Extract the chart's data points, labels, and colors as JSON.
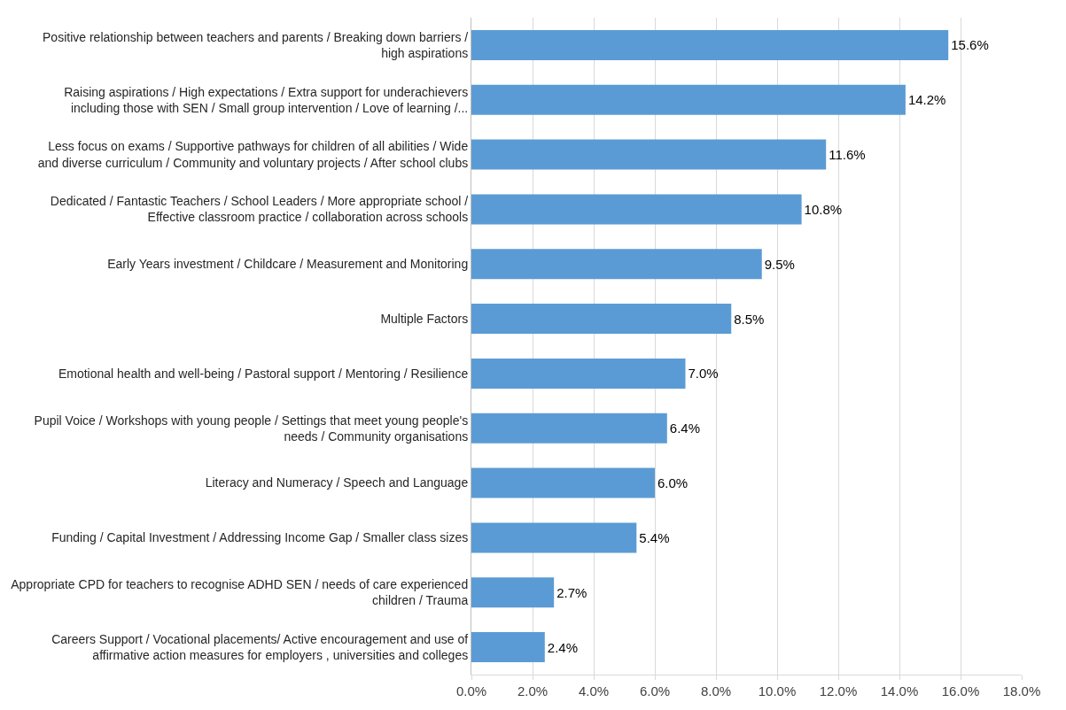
{
  "chart_data": {
    "type": "bar",
    "orientation": "horizontal",
    "categories": [
      "Positive relationship between teachers and parents / Breaking down barriers / high aspirations",
      "Raising aspirations / High expectations / Extra support for underachievers including those with SEN / Small group intervention / Love of learning /...",
      "Less focus on exams / Supportive pathways for children of all abilities / Wide and diverse curriculum / Community and voluntary projects / After school clubs",
      "Dedicated / Fantastic Teachers / School Leaders / More appropriate school / Effective classroom practice / collaboration across schools",
      "Early Years investment / Childcare / Measurement and Monitoring",
      "Multiple Factors",
      "Emotional health and well-being / Pastoral support / Mentoring / Resilience",
      "Pupil Voice / Workshops with young people / Settings that meet young people's needs / Community organisations",
      "Literacy and Numeracy / Speech and Language",
      "Funding / Capital Investment / Addressing Income Gap / Smaller class sizes",
      "Appropriate CPD for teachers to recognise ADHD SEN / needs of care experienced children / Trauma",
      "Careers Support / Vocational placements/ Active encouragement and use of affirmative action measures for employers , universities and colleges"
    ],
    "values": [
      15.6,
      14.2,
      11.6,
      10.8,
      9.5,
      8.5,
      7.0,
      6.4,
      6.0,
      5.4,
      2.7,
      2.4
    ],
    "value_labels": [
      "15.6%",
      "14.2%",
      "11.6%",
      "10.8%",
      "9.5%",
      "8.5%",
      "7.0%",
      "6.4%",
      "6.0%",
      "5.4%",
      "2.7%",
      "2.4%"
    ],
    "color": "#5b9bd5",
    "xlim": [
      0,
      18
    ],
    "xticks": [
      {
        "value": 0,
        "label": "0.0%"
      },
      {
        "value": 2,
        "label": "2.0%"
      },
      {
        "value": 4,
        "label": "4.0%"
      },
      {
        "value": 6,
        "label": "6.0%"
      },
      {
        "value": 8,
        "label": "8.0%"
      },
      {
        "value": 10,
        "label": "10.0%"
      },
      {
        "value": 12,
        "label": "12.0%"
      },
      {
        "value": 14,
        "label": "14.0%"
      },
      {
        "value": 16,
        "label": "16.0%"
      },
      {
        "value": 18,
        "label": "18.0%"
      }
    ],
    "grid": "x",
    "legend": false
  }
}
